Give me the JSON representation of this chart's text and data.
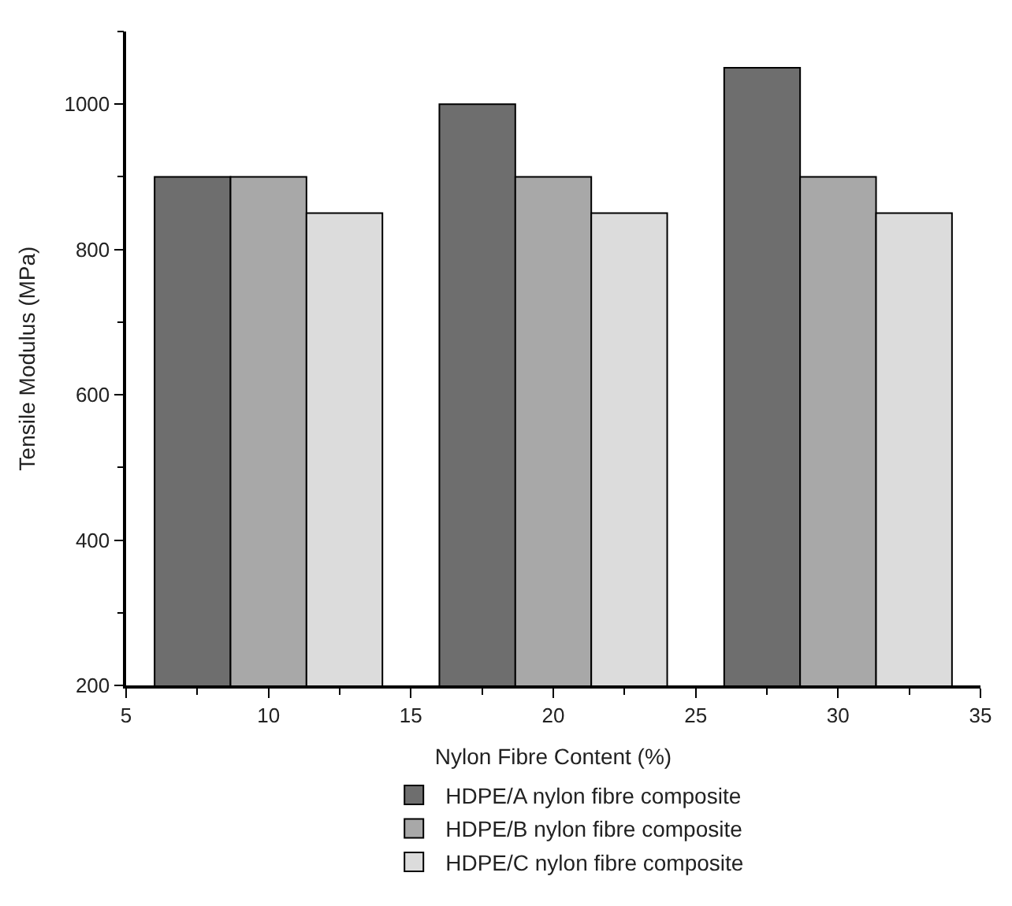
{
  "chart_data": {
    "type": "bar",
    "xlabel": "Nylon Fibre Content (%)",
    "ylabel": "Tensile Modulus (MPa)",
    "x": [
      10,
      20,
      30
    ],
    "series": [
      {
        "name": "HDPE/A nylon fibre composite",
        "color": "#6e6e6e",
        "values": [
          900,
          1000,
          1050
        ]
      },
      {
        "name": "HDPE/B nylon fibre composite",
        "color": "#a8a8a8",
        "values": [
          900,
          900,
          900
        ]
      },
      {
        "name": "HDPE/C nylon fibre composite",
        "color": "#dcdcdc",
        "values": [
          850,
          850,
          850
        ]
      }
    ],
    "xlim": [
      5,
      35
    ],
    "xticks": [
      5,
      10,
      15,
      20,
      25,
      30,
      35
    ],
    "ylim": [
      200,
      1100
    ],
    "yticks": [
      200,
      400,
      600,
      800,
      1000
    ],
    "legend": "bottom"
  }
}
